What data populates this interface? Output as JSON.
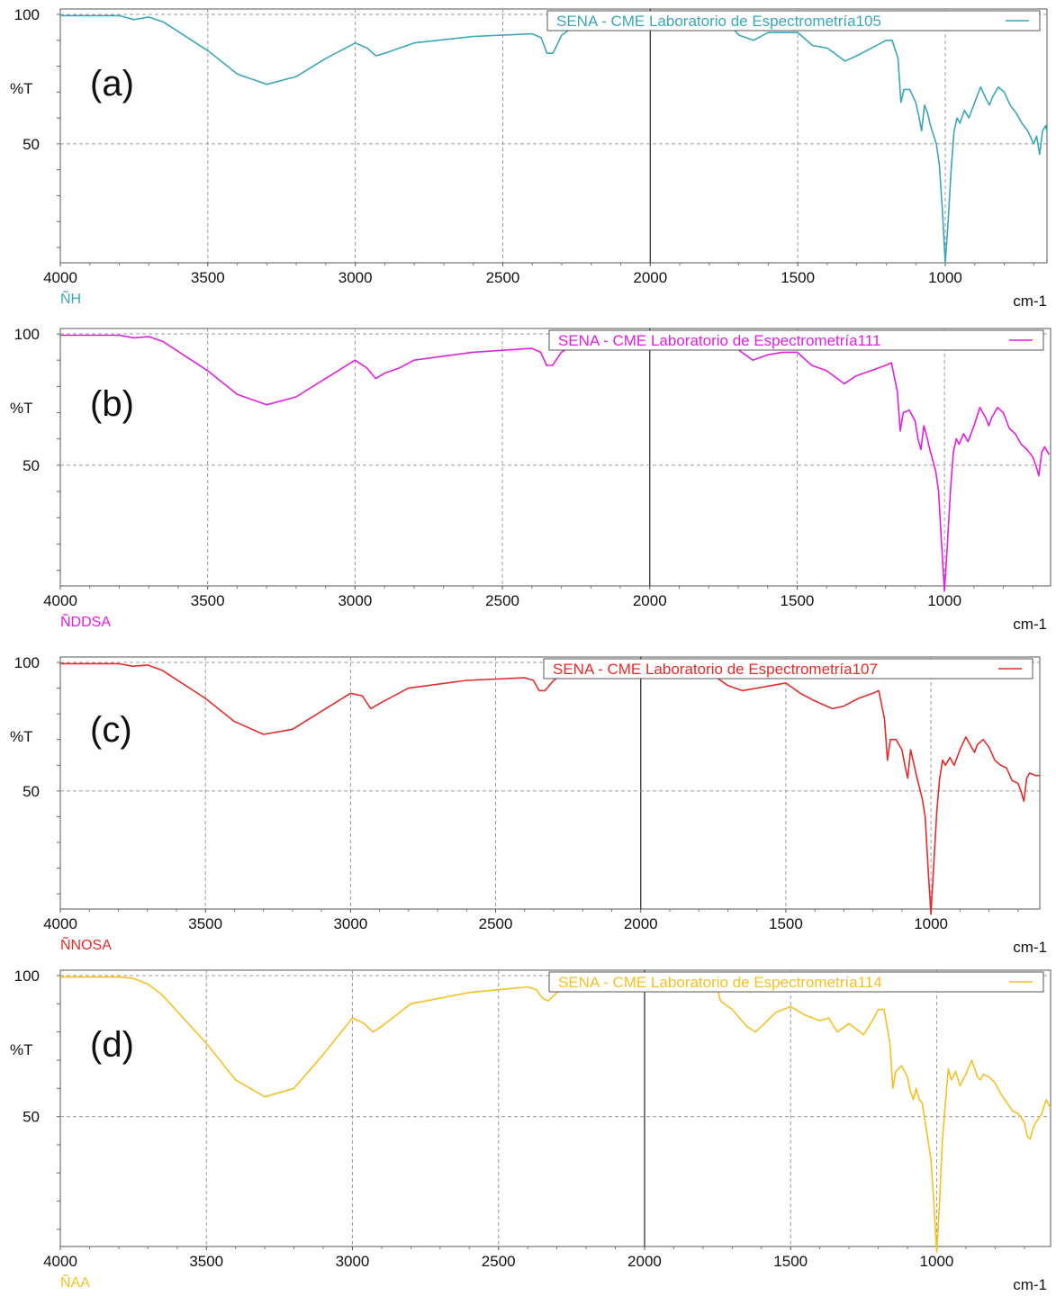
{
  "chart_data": [
    {
      "type": "line",
      "panel_label": "(a)",
      "legend": "SENA - CME Laboratorio de Espectrometría105",
      "sample_label": "ÑH",
      "color": "#3aa6b9",
      "ylabel": "%T",
      "xunit": "cm-1",
      "xlim": [
        4000,
        655
      ],
      "x_ticks": [
        "4000",
        "3500",
        "3000",
        "2500",
        "2000",
        "1500",
        "1000"
      ],
      "y_ticks": [
        "100",
        "50"
      ],
      "grid": true,
      "legend_position": "top-right",
      "points": [
        [
          4000,
          99.5
        ],
        [
          3800,
          99.5
        ],
        [
          3750,
          98
        ],
        [
          3700,
          99
        ],
        [
          3650,
          97
        ],
        [
          3500,
          86
        ],
        [
          3400,
          77
        ],
        [
          3300,
          73
        ],
        [
          3200,
          76
        ],
        [
          3100,
          83
        ],
        [
          3000,
          89
        ],
        [
          2960,
          87
        ],
        [
          2930,
          84
        ],
        [
          2900,
          85
        ],
        [
          2850,
          87
        ],
        [
          2800,
          89
        ],
        [
          2600,
          91.5
        ],
        [
          2400,
          92.5
        ],
        [
          2370,
          91
        ],
        [
          2350,
          85
        ],
        [
          2330,
          85
        ],
        [
          2300,
          92
        ],
        [
          2200,
          100
        ],
        [
          1900,
          100
        ],
        [
          1760,
          100
        ],
        [
          1700,
          92
        ],
        [
          1650,
          90
        ],
        [
          1600,
          93
        ],
        [
          1550,
          93
        ],
        [
          1500,
          93
        ],
        [
          1450,
          88
        ],
        [
          1400,
          87
        ],
        [
          1340,
          82
        ],
        [
          1300,
          84
        ],
        [
          1250,
          87
        ],
        [
          1200,
          90
        ],
        [
          1180,
          90
        ],
        [
          1160,
          83
        ],
        [
          1150,
          66
        ],
        [
          1140,
          71
        ],
        [
          1120,
          71
        ],
        [
          1100,
          66
        ],
        [
          1090,
          61
        ],
        [
          1080,
          55
        ],
        [
          1070,
          65
        ],
        [
          1060,
          62
        ],
        [
          1050,
          57
        ],
        [
          1030,
          50
        ],
        [
          1020,
          42
        ],
        [
          1010,
          25
        ],
        [
          1000,
          4
        ],
        [
          990,
          20
        ],
        [
          980,
          40
        ],
        [
          970,
          55
        ],
        [
          960,
          60
        ],
        [
          950,
          58
        ],
        [
          935,
          63
        ],
        [
          920,
          60
        ],
        [
          900,
          66
        ],
        [
          880,
          72
        ],
        [
          860,
          67
        ],
        [
          850,
          65
        ],
        [
          840,
          68
        ],
        [
          820,
          72
        ],
        [
          800,
          70
        ],
        [
          780,
          65
        ],
        [
          760,
          62
        ],
        [
          740,
          58
        ],
        [
          720,
          55
        ],
        [
          700,
          50
        ],
        [
          690,
          53
        ],
        [
          680,
          46
        ],
        [
          670,
          55
        ],
        [
          660,
          57
        ],
        [
          655,
          55
        ]
      ]
    },
    {
      "type": "line",
      "panel_label": "(b)",
      "legend": "SENA - CME Laboratorio de Espectrometría111",
      "sample_label": "ÑDDSA",
      "color": "#e11ee1",
      "ylabel": "%T",
      "xunit": "cm-1",
      "xlim": [
        4000,
        640
      ],
      "x_ticks": [
        "4000",
        "3500",
        "3000",
        "2500",
        "2000",
        "1500",
        "1000"
      ],
      "y_ticks": [
        "100",
        "50"
      ],
      "grid": true,
      "legend_position": "top-right",
      "points": [
        [
          4000,
          99.5
        ],
        [
          3800,
          99.5
        ],
        [
          3750,
          98.5
        ],
        [
          3700,
          99
        ],
        [
          3650,
          97
        ],
        [
          3500,
          86
        ],
        [
          3400,
          77
        ],
        [
          3300,
          73
        ],
        [
          3200,
          76
        ],
        [
          3100,
          83
        ],
        [
          3000,
          90
        ],
        [
          2960,
          87
        ],
        [
          2930,
          83
        ],
        [
          2900,
          85
        ],
        [
          2850,
          87
        ],
        [
          2800,
          90
        ],
        [
          2600,
          93
        ],
        [
          2400,
          94.5
        ],
        [
          2370,
          93
        ],
        [
          2350,
          88
        ],
        [
          2330,
          88
        ],
        [
          2300,
          93
        ],
        [
          2200,
          100
        ],
        [
          1900,
          100
        ],
        [
          1770,
          100
        ],
        [
          1700,
          94
        ],
        [
          1650,
          90
        ],
        [
          1600,
          92
        ],
        [
          1550,
          93
        ],
        [
          1500,
          93
        ],
        [
          1450,
          88
        ],
        [
          1400,
          86
        ],
        [
          1340,
          81
        ],
        [
          1300,
          84
        ],
        [
          1250,
          86
        ],
        [
          1200,
          88
        ],
        [
          1180,
          89
        ],
        [
          1160,
          78
        ],
        [
          1150,
          63
        ],
        [
          1140,
          70
        ],
        [
          1120,
          71
        ],
        [
          1100,
          67
        ],
        [
          1090,
          60
        ],
        [
          1080,
          56
        ],
        [
          1070,
          65
        ],
        [
          1060,
          61
        ],
        [
          1050,
          56
        ],
        [
          1030,
          48
        ],
        [
          1020,
          40
        ],
        [
          1010,
          20
        ],
        [
          1000,
          -5
        ],
        [
          990,
          20
        ],
        [
          980,
          40
        ],
        [
          970,
          55
        ],
        [
          960,
          60
        ],
        [
          950,
          58
        ],
        [
          935,
          62
        ],
        [
          920,
          59
        ],
        [
          900,
          65
        ],
        [
          880,
          72
        ],
        [
          860,
          68
        ],
        [
          850,
          65
        ],
        [
          840,
          68
        ],
        [
          820,
          72
        ],
        [
          800,
          70
        ],
        [
          780,
          64
        ],
        [
          760,
          62
        ],
        [
          740,
          58
        ],
        [
          720,
          56
        ],
        [
          700,
          53
        ],
        [
          690,
          50
        ],
        [
          680,
          46
        ],
        [
          670,
          55
        ],
        [
          660,
          57
        ],
        [
          645,
          54
        ]
      ]
    },
    {
      "type": "line",
      "panel_label": "(c)",
      "legend": "SENA - CME Laboratorio de Espectrometría107",
      "sample_label": "ÑNOSA",
      "color": "#e52a2a",
      "ylabel": "%T",
      "xunit": "cm-1",
      "xlim": [
        4000,
        625
      ],
      "x_ticks": [
        "4000",
        "3500",
        "3000",
        "2500",
        "2000",
        "1500",
        "1000"
      ],
      "y_ticks": [
        "100",
        "50"
      ],
      "grid": true,
      "legend_position": "top-right",
      "points": [
        [
          4000,
          99.5
        ],
        [
          3800,
          99.5
        ],
        [
          3750,
          98.5
        ],
        [
          3700,
          99
        ],
        [
          3650,
          97
        ],
        [
          3500,
          86
        ],
        [
          3400,
          77
        ],
        [
          3300,
          72
        ],
        [
          3200,
          74
        ],
        [
          3100,
          81
        ],
        [
          3000,
          88
        ],
        [
          2960,
          87
        ],
        [
          2930,
          82
        ],
        [
          2900,
          84
        ],
        [
          2850,
          87
        ],
        [
          2800,
          90
        ],
        [
          2600,
          93
        ],
        [
          2400,
          94
        ],
        [
          2370,
          93
        ],
        [
          2350,
          89
        ],
        [
          2330,
          89
        ],
        [
          2300,
          93
        ],
        [
          2200,
          100
        ],
        [
          1900,
          100
        ],
        [
          1780,
          100
        ],
        [
          1750,
          95
        ],
        [
          1700,
          91
        ],
        [
          1650,
          89
        ],
        [
          1600,
          90
        ],
        [
          1550,
          91
        ],
        [
          1500,
          92
        ],
        [
          1450,
          88
        ],
        [
          1400,
          85
        ],
        [
          1340,
          82
        ],
        [
          1300,
          83
        ],
        [
          1250,
          86
        ],
        [
          1200,
          88
        ],
        [
          1180,
          89
        ],
        [
          1160,
          78
        ],
        [
          1150,
          62
        ],
        [
          1140,
          70
        ],
        [
          1120,
          70
        ],
        [
          1100,
          66
        ],
        [
          1090,
          60
        ],
        [
          1080,
          55
        ],
        [
          1070,
          66
        ],
        [
          1060,
          61
        ],
        [
          1050,
          56
        ],
        [
          1030,
          47
        ],
        [
          1020,
          40
        ],
        [
          1010,
          20
        ],
        [
          1000,
          -2
        ],
        [
          990,
          22
        ],
        [
          980,
          42
        ],
        [
          970,
          55
        ],
        [
          960,
          62
        ],
        [
          950,
          60
        ],
        [
          935,
          63
        ],
        [
          920,
          60
        ],
        [
          900,
          66
        ],
        [
          880,
          71
        ],
        [
          860,
          67
        ],
        [
          850,
          65
        ],
        [
          840,
          68
        ],
        [
          820,
          70
        ],
        [
          800,
          67
        ],
        [
          780,
          62
        ],
        [
          760,
          60
        ],
        [
          740,
          59
        ],
        [
          720,
          54
        ],
        [
          700,
          53
        ],
        [
          690,
          50
        ],
        [
          680,
          46
        ],
        [
          670,
          55
        ],
        [
          660,
          57
        ],
        [
          640,
          56
        ],
        [
          625,
          56
        ]
      ]
    },
    {
      "type": "line",
      "panel_label": "(d)",
      "legend": "SENA - CME Laboratorio de Espectrometría114",
      "sample_label": "ÑAA",
      "color": "#f5c023",
      "ylabel": "%T",
      "xunit": "cm-1",
      "xlim": [
        4000,
        610
      ],
      "x_ticks": [
        "4000",
        "3500",
        "3000",
        "2500",
        "2000",
        "1500",
        "1000"
      ],
      "y_ticks": [
        "100",
        "50"
      ],
      "grid": true,
      "legend_position": "top-right",
      "points": [
        [
          4000,
          99.5
        ],
        [
          3800,
          99.5
        ],
        [
          3750,
          99
        ],
        [
          3700,
          97
        ],
        [
          3650,
          93
        ],
        [
          3500,
          76
        ],
        [
          3400,
          63
        ],
        [
          3300,
          57
        ],
        [
          3200,
          60
        ],
        [
          3100,
          72
        ],
        [
          3000,
          85
        ],
        [
          2960,
          83
        ],
        [
          2930,
          80
        ],
        [
          2900,
          82
        ],
        [
          2850,
          86
        ],
        [
          2800,
          90
        ],
        [
          2600,
          94
        ],
        [
          2400,
          96
        ],
        [
          2370,
          95
        ],
        [
          2350,
          92
        ],
        [
          2330,
          91
        ],
        [
          2300,
          94
        ],
        [
          2200,
          100
        ],
        [
          1900,
          100
        ],
        [
          1760,
          100
        ],
        [
          1740,
          91
        ],
        [
          1700,
          88
        ],
        [
          1650,
          82
        ],
        [
          1620,
          80
        ],
        [
          1600,
          82
        ],
        [
          1550,
          87
        ],
        [
          1500,
          89
        ],
        [
          1450,
          86
        ],
        [
          1400,
          84
        ],
        [
          1370,
          85
        ],
        [
          1340,
          80
        ],
        [
          1300,
          83
        ],
        [
          1250,
          79
        ],
        [
          1220,
          84
        ],
        [
          1200,
          88
        ],
        [
          1180,
          88
        ],
        [
          1160,
          76
        ],
        [
          1150,
          60
        ],
        [
          1140,
          66
        ],
        [
          1120,
          68
        ],
        [
          1100,
          64
        ],
        [
          1090,
          59
        ],
        [
          1080,
          56
        ],
        [
          1070,
          60
        ],
        [
          1060,
          56
        ],
        [
          1050,
          55
        ],
        [
          1030,
          42
        ],
        [
          1020,
          35
        ],
        [
          1010,
          20
        ],
        [
          1000,
          -6
        ],
        [
          990,
          20
        ],
        [
          980,
          42
        ],
        [
          970,
          55
        ],
        [
          960,
          67
        ],
        [
          950,
          63
        ],
        [
          935,
          66
        ],
        [
          920,
          61
        ],
        [
          900,
          65
        ],
        [
          880,
          70
        ],
        [
          860,
          64
        ],
        [
          850,
          63
        ],
        [
          840,
          65
        ],
        [
          820,
          64
        ],
        [
          800,
          62
        ],
        [
          780,
          58
        ],
        [
          760,
          55
        ],
        [
          740,
          52
        ],
        [
          720,
          51
        ],
        [
          700,
          48
        ],
        [
          690,
          43
        ],
        [
          680,
          42
        ],
        [
          670,
          46
        ],
        [
          660,
          48
        ],
        [
          640,
          51
        ],
        [
          625,
          56
        ],
        [
          610,
          53
        ]
      ]
    }
  ]
}
